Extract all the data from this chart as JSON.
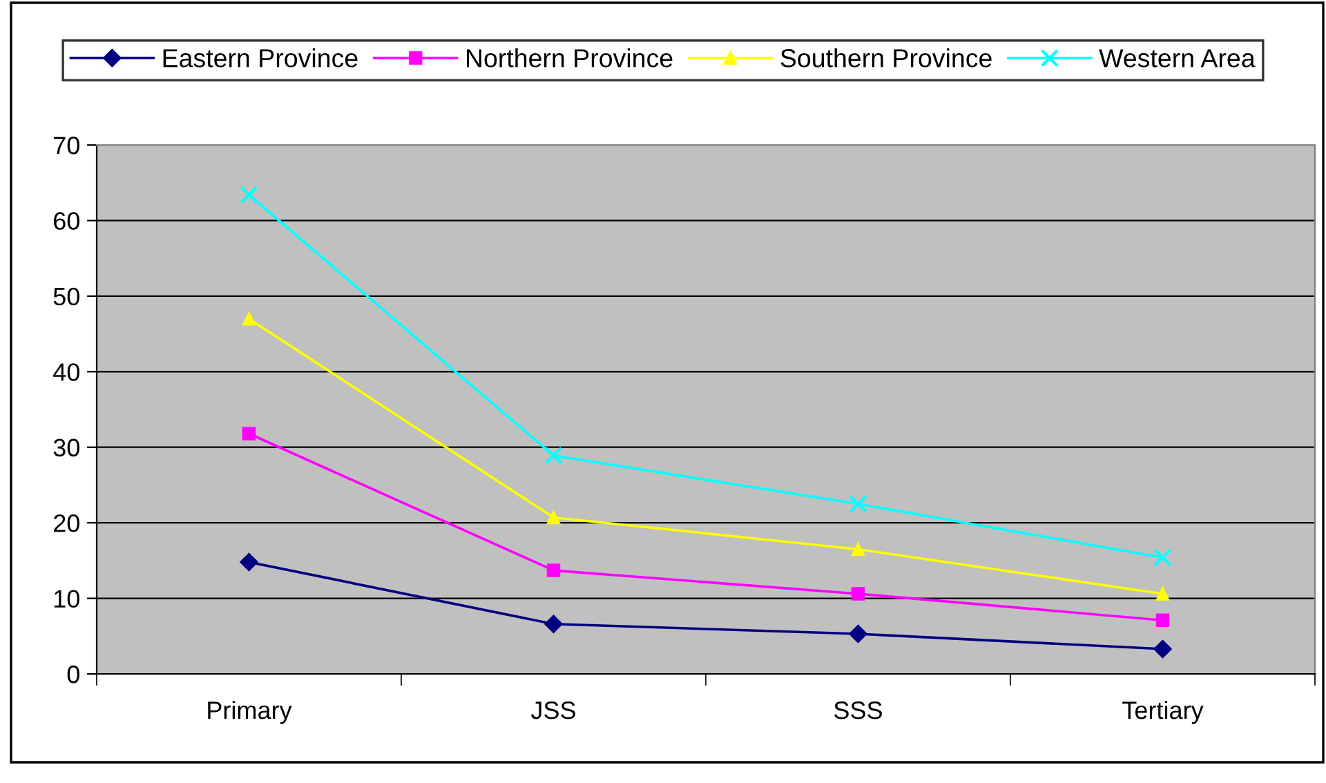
{
  "chart_data": {
    "type": "line",
    "categories": [
      "Primary",
      "JSS",
      "SSS",
      "Tertiary"
    ],
    "series": [
      {
        "name": "Eastern Province",
        "color": "#000080",
        "marker": "diamond",
        "values": [
          14.8,
          6.6,
          5.3,
          3.3
        ]
      },
      {
        "name": "Northern Province",
        "color": "#ff00ff",
        "marker": "square",
        "values": [
          31.8,
          13.7,
          10.6,
          7.1
        ]
      },
      {
        "name": "Southern Province",
        "color": "#ffff00",
        "marker": "triangle",
        "values": [
          47,
          20.7,
          16.5,
          10.6
        ]
      },
      {
        "name": "Western Area",
        "color": "#00ffff",
        "marker": "cross",
        "values": [
          63.4,
          28.9,
          22.5,
          15.4
        ]
      }
    ],
    "ylim": [
      0,
      70
    ],
    "yticks": [
      0,
      10,
      20,
      30,
      40,
      50,
      60,
      70
    ],
    "grid": "y",
    "legend": "top",
    "line_style": "solid"
  }
}
